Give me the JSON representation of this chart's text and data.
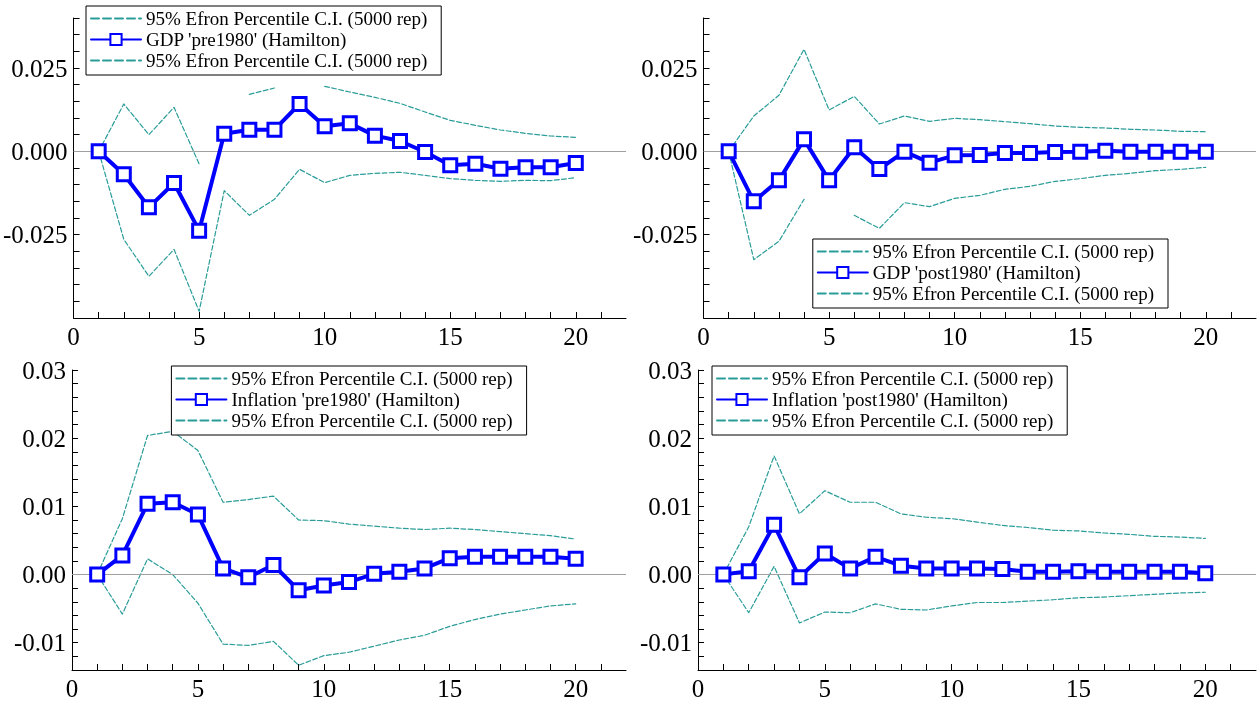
{
  "chart_data": [
    {
      "type": "line",
      "legend": "top left",
      "grid": false,
      "x": [
        1,
        2,
        3,
        4,
        5,
        6,
        7,
        8,
        9,
        10,
        11,
        12,
        13,
        14,
        15,
        16,
        17,
        18,
        19,
        20
      ],
      "xlim": [
        0,
        22
      ],
      "ylim": [
        -0.05,
        0.04
      ],
      "xticks": [
        0,
        {
          "value": 1,
          "label": null
        },
        {
          "value": 2,
          "label": null
        },
        {
          "value": 3,
          "label": null
        },
        {
          "value": 4,
          "label": null
        },
        5,
        {
          "value": 6,
          "label": null
        },
        {
          "value": 7,
          "label": null
        },
        {
          "value": 8,
          "label": null
        },
        {
          "value": 9,
          "label": null
        },
        10,
        {
          "value": 11,
          "label": null
        },
        {
          "value": 12,
          "label": null
        },
        {
          "value": 13,
          "label": null
        },
        {
          "value": 14,
          "label": null
        },
        15,
        {
          "value": 16,
          "label": null
        },
        {
          "value": 17,
          "label": null
        },
        {
          "value": 18,
          "label": null
        },
        {
          "value": 19,
          "label": null
        },
        20,
        {
          "value": 21,
          "label": null
        }
      ],
      "yticks": [
        {
          "value": -0.045,
          "label": null
        },
        {
          "value": -0.04,
          "label": null
        },
        {
          "value": -0.035,
          "label": null
        },
        {
          "value": -0.03,
          "label": null
        },
        -0.025,
        {
          "value": -0.02,
          "label": null
        },
        {
          "value": -0.015,
          "label": null
        },
        {
          "value": -0.01,
          "label": null
        },
        {
          "value": -0.005,
          "label": null
        },
        {
          "value": 0,
          "label": "0.000"
        },
        {
          "value": 0.005,
          "label": null
        },
        {
          "value": 0.01,
          "label": null
        },
        {
          "value": 0.015,
          "label": null
        },
        {
          "value": 0.02,
          "label": null
        },
        0.025,
        {
          "value": 0.03,
          "label": null
        },
        {
          "value": 0.035,
          "label": null
        },
        {
          "value": 0.04,
          "label": null
        }
      ],
      "ref_lines": [
        {
          "axis": "y",
          "value": 0,
          "color": "#a0a0a0"
        }
      ],
      "series": [
        {
          "name": "95% Efron Percentile C.I. (5000 rep)",
          "color": "#2a9d99",
          "line_style": "dashed",
          "marker": "none",
          "values": [
            0,
            0.0142,
            0.005,
            0.0132,
            -0.0038,
            null,
            0.0171,
            0.019,
            null,
            0.0195,
            0.0178,
            0.0162,
            0.0144,
            0.0118,
            0.0093,
            0.0078,
            0.0064,
            0.0054,
            0.0046,
            0.0042
          ]
        },
        {
          "name": "GDP 'pre1980' (Hamilton)",
          "color": "#0000ff",
          "line_style": "solid",
          "marker": "square",
          "values": [
            0,
            -0.0069,
            -0.0168,
            -0.0095,
            -0.0238,
            0.0053,
            0.0065,
            0.0065,
            0.0142,
            0.0075,
            0.0084,
            0.0047,
            0.0031,
            -0.0002,
            -0.0042,
            -0.0037,
            -0.0052,
            -0.0048,
            -0.0048,
            -0.0035
          ]
        },
        {
          "name": "95% Efron Percentile C.I. (5000 rep)",
          "color": "#2a9d99",
          "line_style": "dashed",
          "marker": "none",
          "values": [
            0,
            -0.0264,
            -0.0375,
            -0.0294,
            -0.048,
            -0.0118,
            -0.0192,
            -0.0144,
            -0.0054,
            -0.0094,
            -0.0072,
            -0.0066,
            -0.0063,
            -0.0072,
            -0.0082,
            -0.0087,
            -0.009,
            -0.0087,
            -0.0088,
            -0.0079
          ]
        }
      ]
    },
    {
      "type": "line",
      "legend": "bottom right",
      "grid": false,
      "x": [
        1,
        2,
        3,
        4,
        5,
        6,
        7,
        8,
        9,
        10,
        11,
        12,
        13,
        14,
        15,
        16,
        17,
        18,
        19,
        20
      ],
      "xlim": [
        0,
        22
      ],
      "ylim": [
        -0.05,
        0.04
      ],
      "xticks": [
        0,
        {
          "value": 1,
          "label": null
        },
        {
          "value": 2,
          "label": null
        },
        {
          "value": 3,
          "label": null
        },
        {
          "value": 4,
          "label": null
        },
        5,
        {
          "value": 6,
          "label": null
        },
        {
          "value": 7,
          "label": null
        },
        {
          "value": 8,
          "label": null
        },
        {
          "value": 9,
          "label": null
        },
        10,
        {
          "value": 11,
          "label": null
        },
        {
          "value": 12,
          "label": null
        },
        {
          "value": 13,
          "label": null
        },
        {
          "value": 14,
          "label": null
        },
        15,
        {
          "value": 16,
          "label": null
        },
        {
          "value": 17,
          "label": null
        },
        {
          "value": 18,
          "label": null
        },
        {
          "value": 19,
          "label": null
        },
        20,
        {
          "value": 21,
          "label": null
        }
      ],
      "yticks": [
        {
          "value": -0.045,
          "label": null
        },
        {
          "value": -0.04,
          "label": null
        },
        {
          "value": -0.035,
          "label": null
        },
        {
          "value": -0.03,
          "label": null
        },
        -0.025,
        {
          "value": -0.02,
          "label": null
        },
        {
          "value": -0.015,
          "label": null
        },
        {
          "value": -0.01,
          "label": null
        },
        {
          "value": -0.005,
          "label": null
        },
        {
          "value": 0,
          "label": "0.000"
        },
        {
          "value": 0.005,
          "label": null
        },
        {
          "value": 0.01,
          "label": null
        },
        {
          "value": 0.015,
          "label": null
        },
        {
          "value": 0.02,
          "label": null
        },
        0.025,
        {
          "value": 0.03,
          "label": null
        },
        {
          "value": 0.035,
          "label": null
        },
        {
          "value": 0.04,
          "label": null
        }
      ],
      "ref_lines": [
        {
          "axis": "y",
          "value": 0,
          "color": "#a0a0a0"
        }
      ],
      "series": [
        {
          "name": "95% Efron Percentile C.I. (5000 rep)",
          "color": "#2a9d99",
          "line_style": "dashed",
          "marker": "none",
          "values": [
            0,
            0.0106,
            0.0168,
            0.0306,
            0.0124,
            0.0165,
            0.0082,
            0.0106,
            0.009,
            0.0099,
            0.0095,
            0.0089,
            0.0083,
            0.0076,
            0.0072,
            0.007,
            0.0066,
            0.0064,
            0.006,
            0.0059
          ]
        },
        {
          "name": "GDP 'post1980' (Hamilton)",
          "color": "#0000ff",
          "line_style": "solid",
          "marker": "square",
          "values": [
            0,
            -0.015,
            -0.0087,
            0.0036,
            -0.0087,
            0.0012,
            -0.0053,
            -0.0001,
            -0.0034,
            -0.0012,
            -0.0011,
            -0.0005,
            -0.0005,
            -0.0002,
            -0.0001,
            0.0002,
            -0.0001,
            -0.0001,
            -0.0001,
            -0.0001
          ]
        },
        {
          "name": "95% Efron Percentile C.I. (5000 rep)",
          "color": "#2a9d99",
          "line_style": "dashed",
          "marker": "none",
          "values": [
            0,
            -0.0325,
            -0.027,
            -0.0144,
            null,
            -0.0192,
            -0.0231,
            -0.0154,
            -0.0166,
            -0.0141,
            -0.0132,
            -0.0114,
            -0.0105,
            -0.009,
            -0.0082,
            -0.0072,
            -0.0066,
            -0.0058,
            -0.0054,
            -0.0048
          ]
        }
      ]
    },
    {
      "type": "line",
      "legend": "top",
      "grid": false,
      "x": [
        1,
        2,
        3,
        4,
        5,
        6,
        7,
        8,
        9,
        10,
        11,
        12,
        13,
        14,
        15,
        16,
        17,
        18,
        19,
        20
      ],
      "xlim": [
        0,
        22
      ],
      "ylim": [
        -0.014,
        0.03
      ],
      "xticks": [
        0,
        {
          "value": 1,
          "label": null
        },
        {
          "value": 2,
          "label": null
        },
        {
          "value": 3,
          "label": null
        },
        {
          "value": 4,
          "label": null
        },
        5,
        {
          "value": 6,
          "label": null
        },
        {
          "value": 7,
          "label": null
        },
        {
          "value": 8,
          "label": null
        },
        {
          "value": 9,
          "label": null
        },
        10,
        {
          "value": 11,
          "label": null
        },
        {
          "value": 12,
          "label": null
        },
        {
          "value": 13,
          "label": null
        },
        {
          "value": 14,
          "label": null
        },
        15,
        {
          "value": 16,
          "label": null
        },
        {
          "value": 17,
          "label": null
        },
        {
          "value": 18,
          "label": null
        },
        {
          "value": 19,
          "label": null
        },
        20,
        {
          "value": 21,
          "label": null
        }
      ],
      "yticks": [
        {
          "value": -0.012,
          "label": null
        },
        -0.01,
        {
          "value": -0.008,
          "label": null
        },
        {
          "value": -0.006,
          "label": null
        },
        {
          "value": -0.004,
          "label": null
        },
        {
          "value": -0.002,
          "label": null
        },
        {
          "value": 0,
          "label": "0.00"
        },
        {
          "value": 0.002,
          "label": null
        },
        {
          "value": 0.004,
          "label": null
        },
        {
          "value": 0.006,
          "label": null
        },
        {
          "value": 0.008,
          "label": null
        },
        0.01,
        {
          "value": 0.012,
          "label": null
        },
        {
          "value": 0.014,
          "label": null
        },
        {
          "value": 0.016,
          "label": null
        },
        {
          "value": 0.018,
          "label": null
        },
        0.02,
        {
          "value": 0.022,
          "label": null
        },
        {
          "value": 0.024,
          "label": null
        },
        {
          "value": 0.026,
          "label": null
        },
        {
          "value": 0.028,
          "label": null
        },
        0.03
      ],
      "ref_lines": [
        {
          "axis": "y",
          "value": 0,
          "color": "#a0a0a0"
        }
      ],
      "series": [
        {
          "name": "95% Efron Percentile C.I. (5000 rep)",
          "color": "#2a9d99",
          "line_style": "dashed",
          "marker": "none",
          "values": [
            0,
            0.0082,
            0.0204,
            0.021,
            0.0182,
            0.0106,
            0.011,
            0.0115,
            0.008,
            0.0079,
            0.0074,
            0.0071,
            0.0068,
            0.0066,
            0.0068,
            0.0066,
            0.0063,
            0.006,
            0.0057,
            0.0052
          ]
        },
        {
          "name": "Inflation 'pre1980' (Hamilton)",
          "color": "#0000ff",
          "line_style": "solid",
          "marker": "square",
          "values": [
            0,
            0.0028,
            0.0104,
            0.0106,
            0.0088,
            0.0009,
            -0.0004,
            0.0014,
            -0.0023,
            -0.0016,
            -0.0011,
            0.0001,
            0.0004,
            0.0009,
            0.0024,
            0.0026,
            0.0026,
            0.0026,
            0.0026,
            0.0023
          ]
        },
        {
          "name": "95% Efron Percentile C.I. (5000 rep)",
          "color": "#2a9d99",
          "line_style": "dashed",
          "marker": "none",
          "values": [
            0,
            -0.0058,
            0.0023,
            0,
            -0.0042,
            -0.0102,
            -0.0104,
            -0.0098,
            -0.0133,
            -0.0119,
            -0.0114,
            -0.0105,
            -0.0096,
            -0.0089,
            -0.0076,
            -0.0066,
            -0.0058,
            -0.0052,
            -0.0046,
            -0.0043
          ]
        }
      ]
    },
    {
      "type": "line",
      "legend": "top left",
      "grid": false,
      "x": [
        1,
        2,
        3,
        4,
        5,
        6,
        7,
        8,
        9,
        10,
        11,
        12,
        13,
        14,
        15,
        16,
        17,
        18,
        19,
        20
      ],
      "xlim": [
        0,
        22
      ],
      "ylim": [
        -0.014,
        0.03
      ],
      "xticks": [
        0,
        {
          "value": 1,
          "label": null
        },
        {
          "value": 2,
          "label": null
        },
        {
          "value": 3,
          "label": null
        },
        {
          "value": 4,
          "label": null
        },
        5,
        {
          "value": 6,
          "label": null
        },
        {
          "value": 7,
          "label": null
        },
        {
          "value": 8,
          "label": null
        },
        {
          "value": 9,
          "label": null
        },
        10,
        {
          "value": 11,
          "label": null
        },
        {
          "value": 12,
          "label": null
        },
        {
          "value": 13,
          "label": null
        },
        {
          "value": 14,
          "label": null
        },
        15,
        {
          "value": 16,
          "label": null
        },
        {
          "value": 17,
          "label": null
        },
        {
          "value": 18,
          "label": null
        },
        {
          "value": 19,
          "label": null
        },
        20,
        {
          "value": 21,
          "label": null
        }
      ],
      "yticks": [
        {
          "value": -0.012,
          "label": null
        },
        -0.01,
        {
          "value": -0.008,
          "label": null
        },
        {
          "value": -0.006,
          "label": null
        },
        {
          "value": -0.004,
          "label": null
        },
        {
          "value": -0.002,
          "label": null
        },
        {
          "value": 0,
          "label": "0.00"
        },
        {
          "value": 0.002,
          "label": null
        },
        {
          "value": 0.004,
          "label": null
        },
        {
          "value": 0.006,
          "label": null
        },
        {
          "value": 0.008,
          "label": null
        },
        0.01,
        {
          "value": 0.012,
          "label": null
        },
        {
          "value": 0.014,
          "label": null
        },
        {
          "value": 0.016,
          "label": null
        },
        {
          "value": 0.018,
          "label": null
        },
        0.02,
        {
          "value": 0.022,
          "label": null
        },
        {
          "value": 0.024,
          "label": null
        },
        {
          "value": 0.026,
          "label": null
        },
        {
          "value": 0.028,
          "label": null
        },
        0.03
      ],
      "ref_lines": [
        {
          "axis": "y",
          "value": 0,
          "color": "#a0a0a0"
        }
      ],
      "series": [
        {
          "name": "95% Efron Percentile C.I. (5000 rep)",
          "color": "#2a9d99",
          "line_style": "dashed",
          "marker": "none",
          "values": [
            0,
            0.007,
            0.0174,
            0.0089,
            0.0123,
            0.0106,
            0.0106,
            0.0089,
            0.0084,
            0.0082,
            0.0077,
            0.0072,
            0.0069,
            0.0065,
            0.0064,
            0.0061,
            0.0059,
            0.0056,
            0.0055,
            0.0053
          ]
        },
        {
          "name": "Inflation 'post1980' (Hamilton)",
          "color": "#0000ff",
          "line_style": "solid",
          "marker": "square",
          "values": [
            0,
            0.0005,
            0.0073,
            -0.0004,
            0.0031,
            0.0009,
            0.0026,
            0.0013,
            0.0009,
            0.0009,
            0.0009,
            0.0008,
            0.0004,
            0.0004,
            0.0005,
            0.0004,
            0.0004,
            0.0004,
            0.0004,
            0.0002
          ]
        },
        {
          "name": "95% Efron Percentile C.I. (5000 rep)",
          "color": "#2a9d99",
          "line_style": "dashed",
          "marker": "none",
          "values": [
            0,
            -0.0056,
            0.0012,
            -0.0071,
            -0.0055,
            -0.0056,
            -0.0043,
            -0.0051,
            -0.0052,
            -0.0046,
            -0.0041,
            -0.0041,
            -0.0039,
            -0.0037,
            -0.0034,
            -0.0033,
            -0.0031,
            -0.0029,
            -0.0027,
            -0.0026
          ]
        }
      ]
    }
  ]
}
